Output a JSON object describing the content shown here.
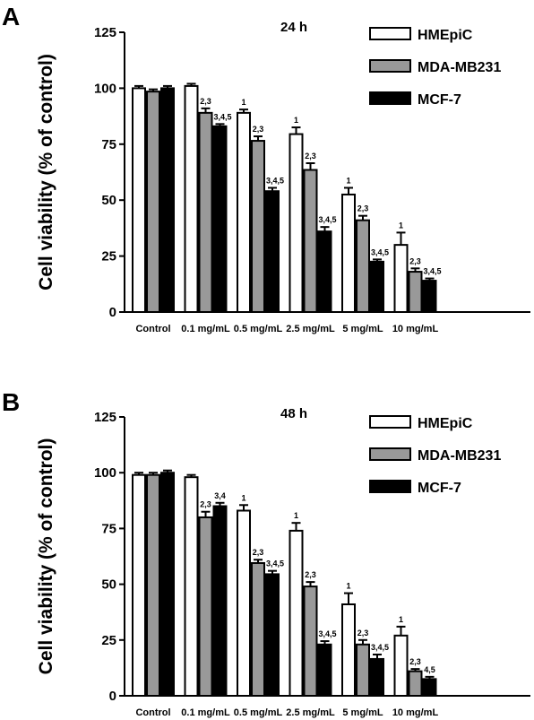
{
  "chart_data": [
    {
      "panel_label": "A",
      "type": "bar",
      "title": "24 h",
      "ylabel": "Cell viability (% of control)",
      "xlabel": "",
      "ylim": [
        0,
        125
      ],
      "yticks": [
        "0",
        "25",
        "50",
        "75",
        "100",
        "125"
      ],
      "categories": [
        "Control",
        "0.1 mg/mL",
        "0.5 mg/mL",
        "2.5 mg/mL",
        "5 mg/mL",
        "10 mg/mL"
      ],
      "legend_position": "top-right",
      "series": [
        {
          "name": "HMEpiC",
          "color": "#ffffff",
          "values": [
            100,
            101,
            89,
            79.5,
            52.5,
            30
          ],
          "errors": [
            1,
            1,
            1.5,
            3,
            3,
            5.5
          ],
          "annotations": [
            "",
            "",
            "1",
            "1",
            "1",
            "1"
          ]
        },
        {
          "name": "MDA-MB231",
          "color": "#999999",
          "values": [
            98.5,
            89,
            76.5,
            63.5,
            41,
            18
          ],
          "errors": [
            1,
            2,
            2,
            3,
            2,
            1.5
          ],
          "annotations": [
            "",
            "2,3",
            "2,3",
            "2,3",
            "2,3",
            "2,3"
          ]
        },
        {
          "name": "MCF-7",
          "color": "#000000",
          "values": [
            100,
            83,
            54,
            36,
            22.5,
            14
          ],
          "errors": [
            1,
            1,
            1.5,
            2,
            1,
            1
          ],
          "annotations": [
            "",
            "3,4,5",
            "3,4,5",
            "3,4,5",
            "3,4,5",
            "3,4,5"
          ]
        }
      ]
    },
    {
      "panel_label": "B",
      "type": "bar",
      "title": "48 h",
      "ylabel": "Cell viability (% of control)",
      "xlabel": "",
      "ylim": [
        0,
        125
      ],
      "yticks": [
        "0",
        "25",
        "50",
        "75",
        "100",
        "125"
      ],
      "categories": [
        "Control",
        "0.1 mg/mL",
        "0.5 mg/mL",
        "2.5 mg/mL",
        "5 mg/mL",
        "10 mg/mL"
      ],
      "legend_position": "top-right",
      "series": [
        {
          "name": "HMEpiC",
          "color": "#ffffff",
          "values": [
            99,
            98,
            83,
            74,
            41,
            27
          ],
          "errors": [
            1,
            1,
            2.5,
            3.5,
            5,
            4
          ],
          "annotations": [
            "",
            "",
            "1",
            "1",
            "1",
            "1"
          ]
        },
        {
          "name": "MDA-MB231",
          "color": "#999999",
          "values": [
            99,
            80,
            59.5,
            49,
            23,
            11
          ],
          "errors": [
            1,
            2.5,
            1.5,
            2,
            2,
            1
          ],
          "annotations": [
            "",
            "2,3",
            "2,3",
            "2,3",
            "2,3",
            "2,3"
          ]
        },
        {
          "name": "MCF-7",
          "color": "#000000",
          "values": [
            100,
            85,
            54.5,
            23,
            16.5,
            7.5
          ],
          "errors": [
            1,
            1.5,
            1.5,
            1.5,
            2,
            1
          ],
          "annotations": [
            "",
            "3,4",
            "3,4,5",
            "3,4,5",
            "3,4,5",
            "4,5"
          ]
        }
      ]
    }
  ]
}
